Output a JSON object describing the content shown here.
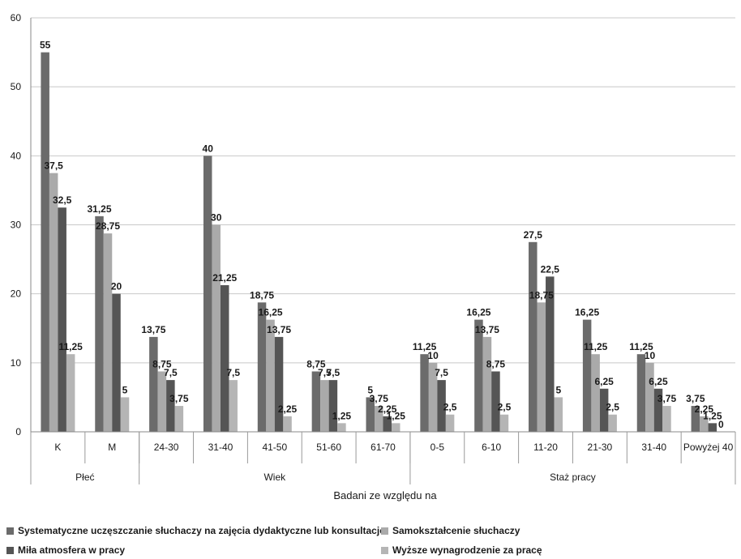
{
  "chart_data": {
    "type": "bar",
    "categories": [
      "K",
      "M",
      "24-30",
      "31-40",
      "41-50",
      "51-60",
      "61-70",
      "0-5",
      "6-10",
      "11-20",
      "21-30",
      "31-40",
      "Powyżej 40"
    ],
    "groups": [
      {
        "label": "Płeć",
        "from": 0,
        "to": 1
      },
      {
        "label": "Wiek",
        "from": 2,
        "to": 6
      },
      {
        "label": "Staż pracy",
        "from": 7,
        "to": 12
      }
    ],
    "xlabel": "Badani ze względu na",
    "ylabel": "",
    "ylim": [
      0,
      60
    ],
    "yticks": [
      0,
      10,
      20,
      30,
      40,
      50,
      60
    ],
    "grid": true,
    "legend_position": "bottom",
    "series": [
      {
        "name": "Systematyczne uczęszczanie słuchaczy na zajęcia dydaktyczne lub konsultacje",
        "color": "#6b6b6b",
        "values": [
          55,
          31.25,
          13.75,
          40,
          18.75,
          8.75,
          5,
          11.25,
          16.25,
          27.5,
          16.25,
          11.25,
          3.75
        ],
        "labels": [
          "55",
          "31,25",
          "13,75",
          "40",
          "18,75",
          "8,75",
          "5",
          "11,25",
          "16,25",
          "27,5",
          "16,25",
          "11,25",
          "3,75"
        ]
      },
      {
        "name": "Samokształcenie słuchaczy",
        "color": "#aaaaaa",
        "values": [
          37.5,
          28.75,
          8.75,
          30,
          16.25,
          7.5,
          3.75,
          10,
          13.75,
          18.75,
          11.25,
          10,
          2.25
        ],
        "labels": [
          "37,5",
          "28,75",
          "8,75",
          "30",
          "16,25",
          "7,5",
          "3,75",
          "10",
          "13,75",
          "18,75",
          "11,25",
          "10",
          "2,25"
        ]
      },
      {
        "name": "Miła atmosfera w pracy",
        "color": "#555555",
        "values": [
          32.5,
          20,
          7.5,
          21.25,
          13.75,
          7.5,
          2.25,
          7.5,
          8.75,
          22.5,
          6.25,
          6.25,
          1.25
        ],
        "labels": [
          "32,5",
          "20",
          "7,5",
          "21,25",
          "13,75",
          "7,5",
          "2,25",
          "7,5",
          "8,75",
          "22,5",
          "6,25",
          "6,25",
          "1,25"
        ]
      },
      {
        "name": "Wyższe wynagrodzenie za pracę",
        "color": "#b5b5b5",
        "values": [
          11.25,
          5,
          3.75,
          7.5,
          2.25,
          1.25,
          1.25,
          2.5,
          2.5,
          5,
          2.5,
          3.75,
          0
        ],
        "labels": [
          "11,25",
          "5",
          "3,75",
          "7,5",
          "2,25",
          "1,25",
          "1,25",
          "2,5",
          "2,5",
          "5",
          "2,5",
          "3,75",
          "0"
        ]
      }
    ]
  }
}
